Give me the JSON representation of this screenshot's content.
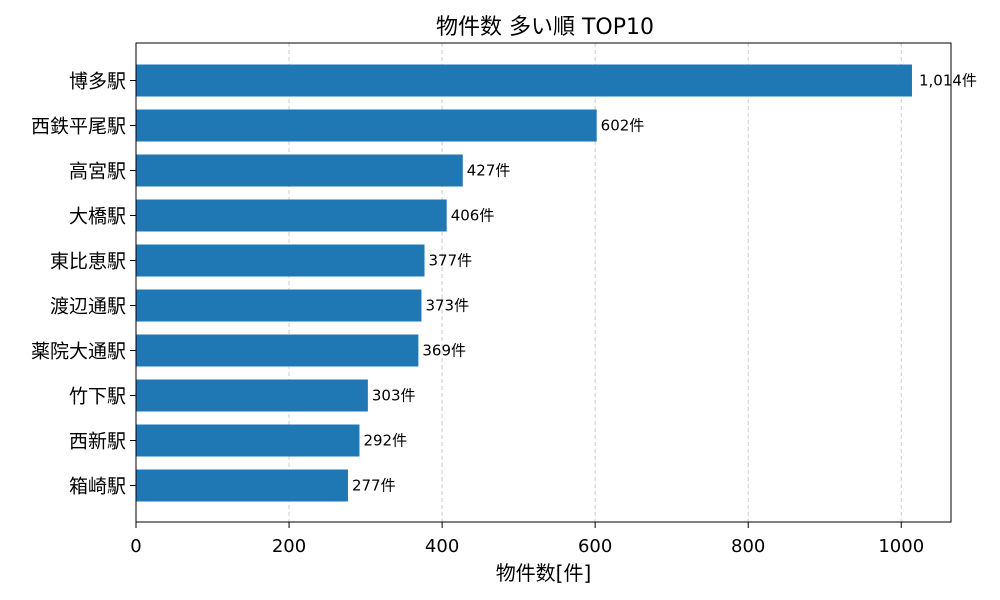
{
  "chart_data": {
    "type": "bar",
    "orientation": "horizontal",
    "title": "物件数 多い順 TOP10",
    "xlabel": "物件数[件]",
    "ylabel": "",
    "categories": [
      "博多駅",
      "西鉄平尾駅",
      "高宮駅",
      "大橋駅",
      "東比恵駅",
      "渡辺通駅",
      "薬院大通駅",
      "竹下駅",
      "西新駅",
      "箱崎駅"
    ],
    "values": [
      1014,
      602,
      427,
      406,
      377,
      373,
      369,
      303,
      292,
      277
    ],
    "data_labels": [
      "1,014件",
      "602件",
      "427件",
      "406件",
      "377件",
      "373件",
      "369件",
      "303件",
      "292件",
      "277件"
    ],
    "xlim": [
      0,
      1065
    ],
    "xticks": [
      0,
      200,
      400,
      600,
      800,
      1000
    ],
    "xtick_labels": [
      "0",
      "200",
      "400",
      "600",
      "800",
      "1000"
    ],
    "grid": "x-dashed",
    "bar_color": "#1f77b4",
    "grid_color": "#cccccc"
  }
}
